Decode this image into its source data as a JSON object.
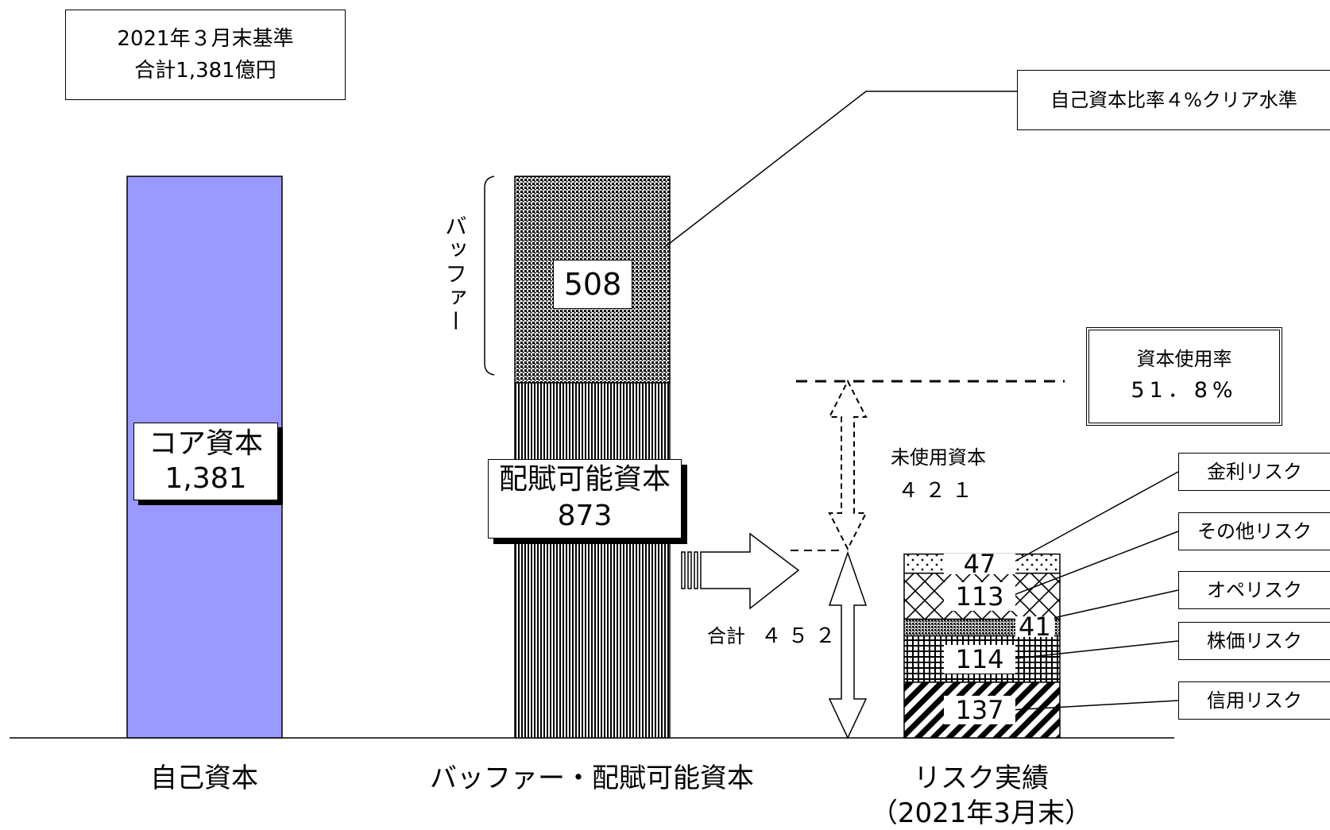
{
  "chart_data": {
    "type": "bar",
    "unit": "億円",
    "categories": [
      "自己資本",
      "バッファー・配賦可能資本",
      "リスク実績"
    ],
    "category_sublabel": "（2021年3月末）",
    "header": {
      "line1": "2021年３月末基準",
      "line2": "合計1,381億円"
    },
    "core_capital": {
      "label": "コア資本",
      "value": 1381,
      "value_text": "1,381",
      "color": "#9999ff"
    },
    "buffer": {
      "side_label": "バッファー",
      "value": 508,
      "value_text": "508"
    },
    "allocatable": {
      "label": "配賦可能資本",
      "value": 873,
      "value_text": "873"
    },
    "clear_level_label": "自己資本比率４%クリア水準",
    "usage_rate": {
      "label": "資本使用率",
      "value_text": "51．8%",
      "value": 51.8
    },
    "unused": {
      "label": "未使用資本",
      "value": 421,
      "value_text": "４２１"
    },
    "total": {
      "label": "合計",
      "value": 452,
      "value_text": "４５２"
    },
    "risks": [
      {
        "name": "信用リスク",
        "value": 137,
        "pattern": "diag"
      },
      {
        "name": "株価リスク",
        "value": 114,
        "pattern": "grid"
      },
      {
        "name": "オペリスク",
        "value": 41,
        "pattern": "dense"
      },
      {
        "name": "その他リスク",
        "value": 113,
        "pattern": "cross"
      },
      {
        "name": "金利リスク",
        "value": 47,
        "pattern": "dots"
      }
    ]
  }
}
